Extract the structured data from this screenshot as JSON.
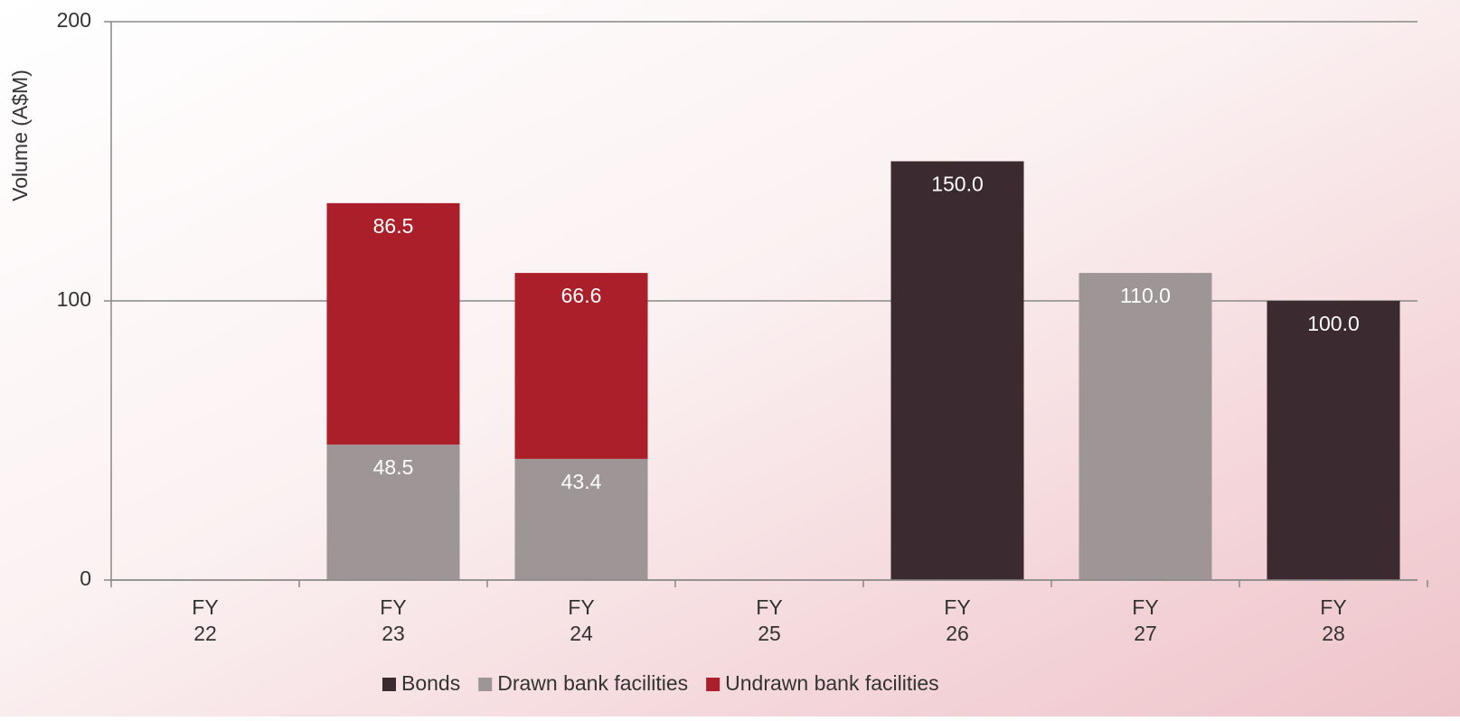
{
  "chart_data": {
    "type": "stacked-bar",
    "y_axis_label": "Volume (A$M)",
    "categories": [
      [
        "FY",
        "22"
      ],
      [
        "FY",
        "23"
      ],
      [
        "FY",
        "24"
      ],
      [
        "FY",
        "25"
      ],
      [
        "FY",
        "26"
      ],
      [
        "FY",
        "27"
      ],
      [
        "FY",
        "28"
      ]
    ],
    "series": [
      {
        "name": "Bonds",
        "color": "#3b2a30",
        "values": [
          null,
          null,
          null,
          null,
          150,
          null,
          100
        ],
        "value_labels": [
          null,
          null,
          null,
          null,
          "150.0",
          null,
          "100.0"
        ]
      },
      {
        "name": "Drawn bank facilities",
        "color": "#9e9597",
        "values": [
          null,
          48.5,
          43.4,
          null,
          null,
          110,
          null
        ],
        "value_labels": [
          null,
          "48.5",
          "43.4",
          null,
          null,
          "110.0",
          null
        ]
      },
      {
        "name": "Undrawn bank facilities",
        "color": "#ab1f2a",
        "values": [
          null,
          86.5,
          66.6,
          null,
          null,
          null,
          null
        ],
        "value_labels": [
          null,
          "86.5",
          "66.6",
          null,
          null,
          null,
          null
        ]
      }
    ],
    "ylim": [
      0,
      200
    ],
    "yticks": [
      0,
      100,
      200
    ],
    "grid": true,
    "legend": "bottom"
  }
}
